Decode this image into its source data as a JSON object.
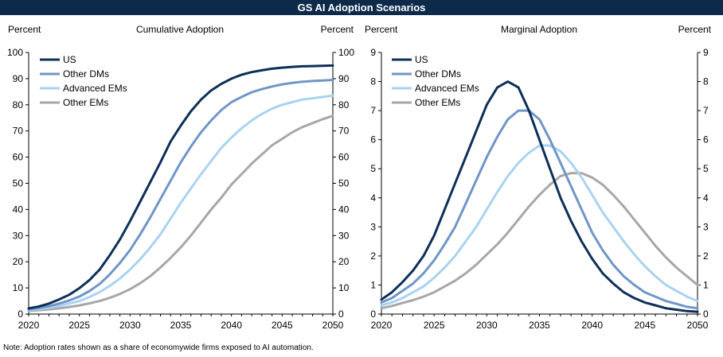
{
  "header": {
    "title": "GS AI Adoption Scenarios"
  },
  "note": "Note: Adoption rates shown as a share of economywide firms exposed to AI automation.",
  "chart_data": [
    {
      "type": "line",
      "title": "Cumulative  Adoption",
      "ylabel_left": "Percent",
      "ylabel_right": "Percent",
      "x": [
        2020,
        2021,
        2022,
        2023,
        2024,
        2025,
        2026,
        2027,
        2028,
        2029,
        2030,
        2031,
        2032,
        2033,
        2034,
        2035,
        2036,
        2037,
        2038,
        2039,
        2040,
        2041,
        2042,
        2043,
        2044,
        2045,
        2046,
        2047,
        2048,
        2049,
        2050
      ],
      "xlim": [
        2020,
        2050
      ],
      "xticks": [
        2020,
        2025,
        2030,
        2035,
        2040,
        2045,
        2050
      ],
      "ylim": [
        0,
        100
      ],
      "yticks": [
        0,
        10,
        20,
        30,
        40,
        50,
        60,
        70,
        80,
        90,
        100
      ],
      "legend": "top-left",
      "series": [
        {
          "name": "US",
          "color": "#0d2f57",
          "values": [
            2.2,
            2.9,
            4.0,
            5.6,
            7.4,
            9.9,
            13.0,
            17.0,
            22.5,
            28.5,
            35.5,
            43.0,
            50.5,
            58.0,
            66.0,
            72.0,
            77.5,
            82.0,
            85.5,
            88.0,
            90.0,
            91.5,
            92.5,
            93.2,
            93.8,
            94.2,
            94.5,
            94.7,
            94.8,
            94.9,
            95.0
          ]
        },
        {
          "name": "Other DMs",
          "color": "#6f96c6",
          "values": [
            1.8,
            2.3,
            3.0,
            4.0,
            5.2,
            6.7,
            8.8,
            11.5,
            15.2,
            19.5,
            24.5,
            30.5,
            37.0,
            44.0,
            51.0,
            58.0,
            64.0,
            69.5,
            74.0,
            78.0,
            81.0,
            83.0,
            84.8,
            86.0,
            87.0,
            87.8,
            88.4,
            88.8,
            89.1,
            89.3,
            89.5
          ]
        },
        {
          "name": "Advanced EMs",
          "color": "#a9d3f0",
          "values": [
            1.5,
            1.9,
            2.4,
            3.1,
            4.0,
            5.0,
            6.5,
            8.4,
            10.8,
            13.6,
            17.0,
            21.0,
            25.5,
            30.5,
            36.5,
            42.5,
            48.0,
            53.5,
            58.5,
            63.5,
            67.5,
            71.0,
            74.0,
            76.5,
            78.5,
            80.0,
            81.0,
            82.0,
            82.5,
            83.0,
            83.5
          ]
        },
        {
          "name": "Other EMs",
          "color": "#a7a7a7",
          "values": [
            1.2,
            1.5,
            1.8,
            2.2,
            2.7,
            3.3,
            4.1,
            5.0,
            6.2,
            7.7,
            9.5,
            11.8,
            14.5,
            17.8,
            21.5,
            25.5,
            30.0,
            35.0,
            40.0,
            44.5,
            49.5,
            53.5,
            57.5,
            61.0,
            64.5,
            67.0,
            69.5,
            71.5,
            73.0,
            74.5,
            75.8
          ]
        }
      ]
    },
    {
      "type": "line",
      "title": "Marginal  Adoption",
      "ylabel_left": "Percent",
      "ylabel_right": "Percent",
      "x": [
        2020,
        2021,
        2022,
        2023,
        2024,
        2025,
        2026,
        2027,
        2028,
        2029,
        2030,
        2031,
        2032,
        2033,
        2034,
        2035,
        2036,
        2037,
        2038,
        2039,
        2040,
        2041,
        2042,
        2043,
        2044,
        2045,
        2046,
        2047,
        2048,
        2049,
        2050
      ],
      "xlim": [
        2020,
        2050
      ],
      "xticks": [
        2020,
        2025,
        2030,
        2035,
        2040,
        2045,
        2050
      ],
      "ylim": [
        0,
        9
      ],
      "yticks": [
        0,
        1,
        2,
        3,
        4,
        5,
        6,
        7,
        8,
        9
      ],
      "legend": "top-left",
      "series": [
        {
          "name": "US",
          "color": "#0d2f57",
          "values": [
            0.5,
            0.75,
            1.1,
            1.5,
            2.0,
            2.7,
            3.6,
            4.5,
            5.4,
            6.3,
            7.2,
            7.8,
            8.0,
            7.8,
            7.0,
            6.0,
            5.0,
            4.0,
            3.2,
            2.5,
            1.9,
            1.4,
            1.05,
            0.75,
            0.55,
            0.4,
            0.3,
            0.2,
            0.15,
            0.1,
            0.08
          ]
        },
        {
          "name": "Other DMs",
          "color": "#6f96c6",
          "values": [
            0.4,
            0.55,
            0.8,
            1.05,
            1.4,
            1.85,
            2.4,
            3.0,
            3.8,
            4.6,
            5.4,
            6.1,
            6.7,
            7.0,
            7.0,
            6.7,
            6.0,
            5.2,
            4.4,
            3.6,
            2.8,
            2.2,
            1.7,
            1.3,
            1.0,
            0.75,
            0.6,
            0.45,
            0.35,
            0.25,
            0.2
          ]
        },
        {
          "name": "Advanced EMs",
          "color": "#a9d3f0",
          "values": [
            0.3,
            0.4,
            0.55,
            0.75,
            0.95,
            1.25,
            1.6,
            2.0,
            2.5,
            3.0,
            3.6,
            4.2,
            4.75,
            5.2,
            5.55,
            5.8,
            5.8,
            5.6,
            5.2,
            4.7,
            4.1,
            3.5,
            3.0,
            2.5,
            2.05,
            1.65,
            1.3,
            1.0,
            0.8,
            0.6,
            0.45
          ]
        },
        {
          "name": "Other EMs",
          "color": "#a7a7a7",
          "values": [
            0.2,
            0.28,
            0.38,
            0.48,
            0.6,
            0.75,
            0.95,
            1.15,
            1.4,
            1.7,
            2.05,
            2.4,
            2.8,
            3.25,
            3.7,
            4.1,
            4.45,
            4.75,
            4.85,
            4.85,
            4.7,
            4.45,
            4.1,
            3.7,
            3.25,
            2.8,
            2.35,
            1.95,
            1.6,
            1.3,
            1.0
          ]
        }
      ]
    }
  ]
}
